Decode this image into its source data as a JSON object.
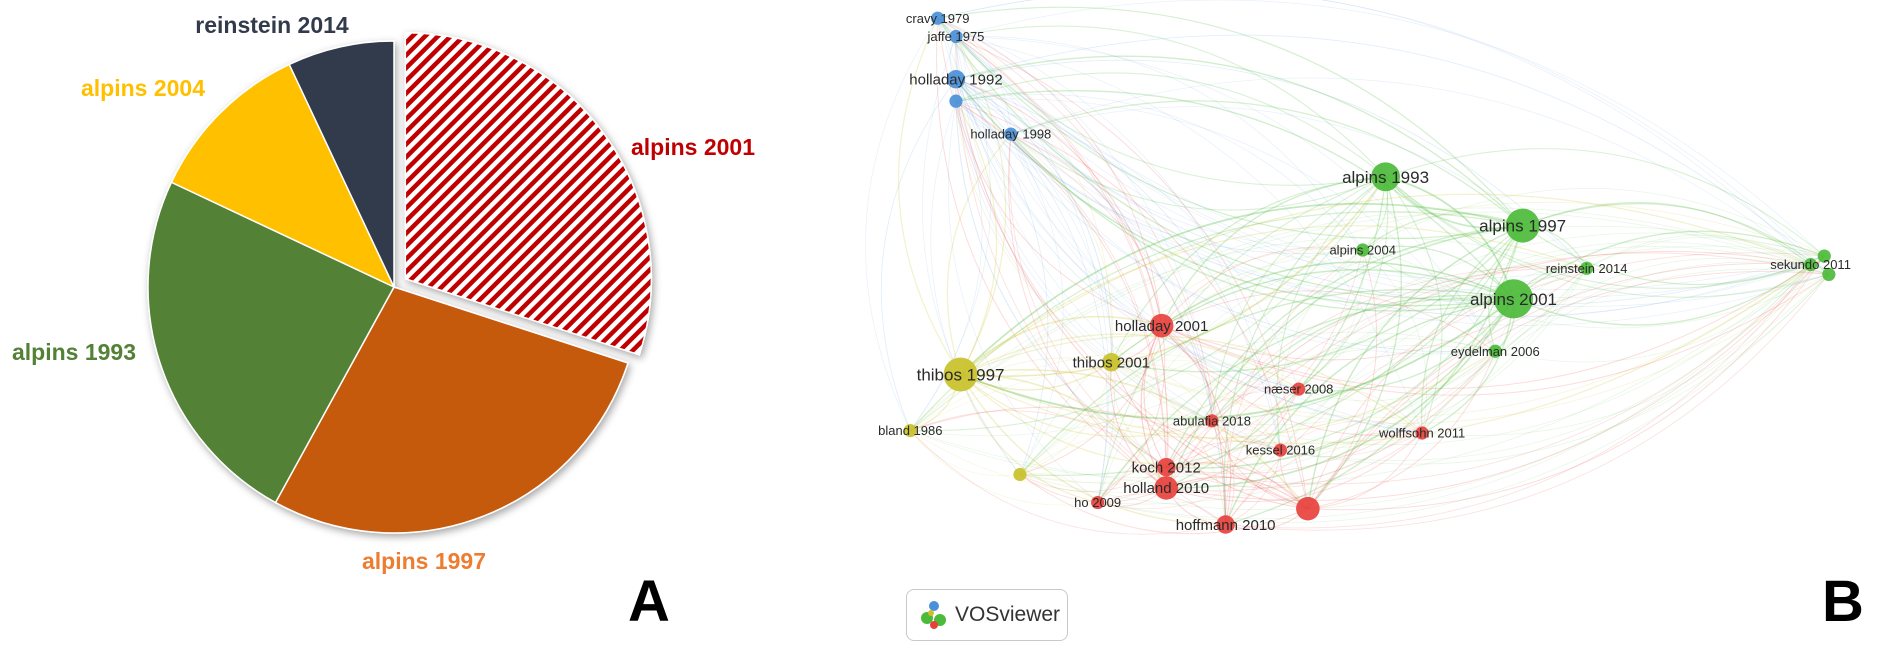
{
  "panels": {
    "a_letter": "A",
    "b_letter": "B"
  },
  "chart_data": [
    {
      "type": "pie",
      "categories": [
        "alpins 2001",
        "alpins 1997",
        "alpins 1993",
        "alpins 2004",
        "reinstein 2014"
      ],
      "values": [
        30,
        28,
        24,
        11,
        7
      ],
      "colors": [
        "#c00000",
        "#c55a11",
        "#538135",
        "#ffc000",
        "#323a4c"
      ],
      "exploded": "alpins 2001",
      "pattern": {
        "alpins 2001": "diagonal-stripes-red-white"
      },
      "labels": [
        {
          "text": "alpins 2001",
          "color": "#c00000"
        },
        {
          "text": "alpins 1997",
          "color": "#ed7d31"
        },
        {
          "text": "alpins 1993",
          "color": "#538135"
        },
        {
          "text": "alpins 2004",
          "color": "#ffc000"
        },
        {
          "text": "reinstein 2014",
          "color": "#323a4c"
        }
      ]
    },
    {
      "type": "network",
      "nodes": [
        {
          "label": "cravy 1979",
          "cluster": "blue",
          "x": 1.0,
          "y": 1.0,
          "weight": 1
        },
        {
          "label": "jaffe 1975",
          "cluster": "blue",
          "x": 1.4,
          "y": 2.5,
          "weight": 1
        },
        {
          "label": "holladay 1992",
          "cluster": "blue",
          "x": 1.4,
          "y": 6.0,
          "weight": 2
        },
        {
          "label": "",
          "cluster": "blue",
          "x": 1.4,
          "y": 7.8,
          "weight": 1
        },
        {
          "label": "holladay 1998",
          "cluster": "blue",
          "x": 2.6,
          "y": 10.5,
          "weight": 1
        },
        {
          "label": "alpins 1993",
          "cluster": "green",
          "x": 10.8,
          "y": 14.0,
          "weight": 4
        },
        {
          "label": "alpins 1997",
          "cluster": "green",
          "x": 13.8,
          "y": 18.0,
          "weight": 5
        },
        {
          "label": "alpins 2004",
          "cluster": "green",
          "x": 10.3,
          "y": 20.0,
          "weight": 1
        },
        {
          "label": "reinstein 2014",
          "cluster": "green",
          "x": 15.2,
          "y": 21.5,
          "weight": 1
        },
        {
          "label": "alpins 2001",
          "cluster": "green",
          "x": 13.6,
          "y": 24.0,
          "weight": 6
        },
        {
          "label": "sekundo 2011",
          "cluster": "green",
          "x": 20.1,
          "y": 21.2,
          "weight": 1
        },
        {
          "label": "",
          "cluster": "green",
          "x": 20.4,
          "y": 20.5,
          "weight": 1
        },
        {
          "label": "",
          "cluster": "green",
          "x": 20.5,
          "y": 22.0,
          "weight": 1
        },
        {
          "label": "eydelman 2006",
          "cluster": "green",
          "x": 13.2,
          "y": 28.3,
          "weight": 1
        },
        {
          "label": "holladay 2001",
          "cluster": "red",
          "x": 5.9,
          "y": 26.2,
          "weight": 3
        },
        {
          "label": "thibos 1997",
          "cluster": "yellow",
          "x": 1.5,
          "y": 30.2,
          "weight": 5
        },
        {
          "label": "thibos 2001",
          "cluster": "yellow",
          "x": 4.8,
          "y": 29.2,
          "weight": 2
        },
        {
          "label": "bland 1986",
          "cluster": "yellow",
          "x": 0.4,
          "y": 34.8,
          "weight": 1
        },
        {
          "label": "",
          "cluster": "yellow",
          "x": 2.8,
          "y": 38.4,
          "weight": 1
        },
        {
          "label": "næser 2008",
          "cluster": "red",
          "x": 8.9,
          "y": 31.4,
          "weight": 1
        },
        {
          "label": "abulafia 2018",
          "cluster": "red",
          "x": 7.0,
          "y": 34.0,
          "weight": 1
        },
        {
          "label": "wolffsohn 2011",
          "cluster": "red",
          "x": 11.6,
          "y": 35.0,
          "weight": 1
        },
        {
          "label": "kessel 2016",
          "cluster": "red",
          "x": 8.5,
          "y": 36.4,
          "weight": 1
        },
        {
          "label": "koch 2012",
          "cluster": "red",
          "x": 6.0,
          "y": 37.8,
          "weight": 2
        },
        {
          "label": "ho 2009",
          "cluster": "red",
          "x": 4.5,
          "y": 40.7,
          "weight": 1
        },
        {
          "label": "holland 2010",
          "cluster": "red",
          "x": 6.0,
          "y": 39.5,
          "weight": 3
        },
        {
          "label": "hoffmann 2010",
          "cluster": "red",
          "x": 7.3,
          "y": 42.5,
          "weight": 2
        },
        {
          "label": "",
          "cluster": "red",
          "x": 9.1,
          "y": 41.2,
          "weight": 3
        }
      ],
      "cluster_colors": {
        "blue": "#4a90d9",
        "green": "#4cbb3a",
        "red": "#e8413d",
        "yellow": "#c9c12a"
      }
    }
  ],
  "vosviewer_badge": {
    "text": "VOSviewer",
    "icon": "vosviewer-logo-icon"
  }
}
